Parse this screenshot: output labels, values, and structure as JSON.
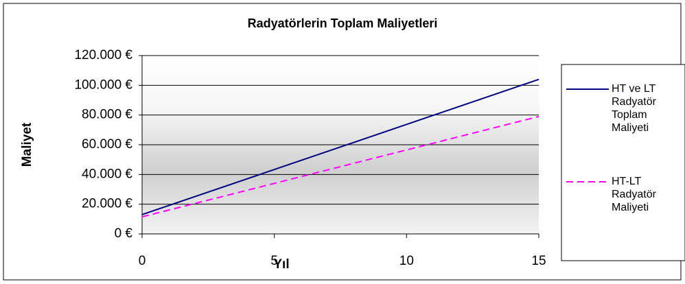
{
  "chart_data": {
    "type": "line",
    "title": "Radyatörlerin Toplam Maliyetleri",
    "x_label": "Yıl",
    "y_label": "Maliyet",
    "x": [
      0,
      15
    ],
    "series": [
      {
        "name": "HT ve LT Radyatör Toplam Maliyeti",
        "color": "#000080",
        "dash": "solid",
        "values": [
          13000,
          104000
        ]
      },
      {
        "name": "HT-LT Radyatör Maliyeti",
        "color": "#ff00ff",
        "dash": "dashed",
        "values": [
          11500,
          79000
        ]
      }
    ],
    "xlim": [
      0,
      15
    ],
    "xticks": [
      0,
      5,
      10,
      15
    ],
    "ylim": [
      0,
      120000
    ],
    "yticks": [
      {
        "value": 0,
        "label": "0 €"
      },
      {
        "value": 20000,
        "label": "20.000 €"
      },
      {
        "value": 40000,
        "label": "40.000 €"
      },
      {
        "value": 60000,
        "label": "60.000 €"
      },
      {
        "value": 80000,
        "label": "80.000 €"
      },
      {
        "value": 100000,
        "label": "100.000 €"
      },
      {
        "value": 120000,
        "label": "120.000 €"
      }
    ],
    "grid": true,
    "legend": "right"
  }
}
